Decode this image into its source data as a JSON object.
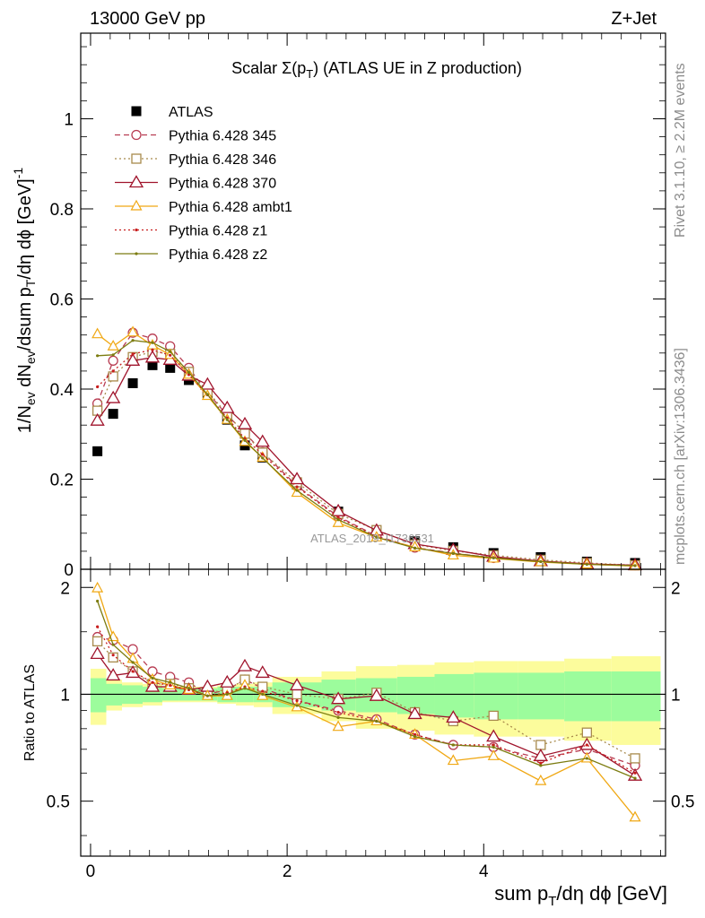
{
  "header": {
    "left": "13000 GeV pp",
    "right": "Z+Jet"
  },
  "side_texts": {
    "rivet": "Rivet 3.1.10, ≥ 2.2M events",
    "mcplots": "mcplots.cern.ch [arXiv:1306.3436]"
  },
  "watermark": "ATLAS_2019_I1736531",
  "colors": {
    "ATLAS": "#000000",
    "p345": "#b83c52",
    "p346": "#a88a4c",
    "p370": "#a0142c",
    "ambt1": "#f0a814",
    "z1": "#c81e1e",
    "z2": "#7c7c10",
    "band_inner": "#9cfc9c",
    "band_outer": "#fcfc9c"
  },
  "chart_data": [
    {
      "panel": "main",
      "type": "line",
      "title": "Scalar Σ(pT) (ATLAS UE in Z production)",
      "title_parts": {
        "pre": "Scalar Σ(p",
        "sub": "T",
        "post": ") (ATLAS UE in Z production)"
      },
      "ylabel": "1/Nev dNev/dsum pT/dη dϕ [GeV]^-1",
      "xlim": [
        -0.1,
        5.85
      ],
      "ylim": [
        0,
        1.19
      ],
      "yticks": [
        0,
        0.2,
        0.4,
        0.6,
        0.8,
        1
      ],
      "yticklabels": [
        "0",
        "0.2",
        "0.4",
        "0.6",
        "0.8",
        "1"
      ],
      "x": [
        0.07,
        0.23,
        0.43,
        0.63,
        0.81,
        1.0,
        1.19,
        1.39,
        1.57,
        1.75,
        2.1,
        2.52,
        2.91,
        3.3,
        3.69,
        4.1,
        4.58,
        5.05,
        5.54
      ],
      "series": [
        {
          "name": "ATLAS",
          "marker": "square-filled",
          "line": "none",
          "values": [
            0.262,
            0.345,
            0.413,
            0.453,
            0.447,
            0.42,
            0.391,
            0.332,
            0.275,
            0.248,
            0.188,
            0.128,
            0.085,
            0.062,
            0.049,
            0.036,
            0.027,
            0.017,
            0.014
          ]
        },
        {
          "name": "Pythia 6.428 345",
          "marker": "circle-open",
          "line": "dashed",
          "values": [
            0.368,
            0.463,
            0.525,
            0.512,
            0.495,
            0.447,
            0.392,
            0.342,
            0.303,
            0.26,
            0.185,
            0.117,
            0.074,
            0.048,
            0.036,
            0.025,
            0.018,
            0.012,
            0.009
          ]
        },
        {
          "name": "Pythia 6.428 346",
          "marker": "square-open",
          "line": "dotted",
          "values": [
            0.352,
            0.428,
            0.471,
            0.483,
            0.478,
            0.438,
            0.395,
            0.344,
            0.301,
            0.259,
            0.193,
            0.123,
            0.087,
            0.055,
            0.041,
            0.031,
            0.021,
            0.014,
            0.009
          ]
        },
        {
          "name": "Pythia 6.428 370",
          "marker": "triangle-open",
          "line": "solid",
          "values": [
            0.33,
            0.38,
            0.463,
            0.47,
            0.465,
            0.43,
            0.41,
            0.358,
            0.322,
            0.283,
            0.2,
            0.129,
            0.086,
            0.056,
            0.043,
            0.028,
            0.018,
            0.012,
            0.009
          ]
        },
        {
          "name": "Pythia 6.428 ambt1",
          "marker": "triangle-open",
          "line": "solid",
          "values": [
            0.522,
            0.495,
            0.526,
            0.497,
            0.476,
            0.432,
            0.385,
            0.332,
            0.283,
            0.248,
            0.17,
            0.103,
            0.071,
            0.049,
            0.031,
            0.024,
            0.016,
            0.011,
            0.007
          ]
        },
        {
          "name": "Pythia 6.428 z1",
          "marker": "dot",
          "line": "dotted",
          "values": [
            0.405,
            0.44,
            0.478,
            0.487,
            0.475,
            0.432,
            0.387,
            0.336,
            0.29,
            0.255,
            0.183,
            0.115,
            0.072,
            0.047,
            0.035,
            0.026,
            0.017,
            0.012,
            0.008
          ]
        },
        {
          "name": "Pythia 6.428 z2",
          "marker": "dot",
          "line": "solid",
          "values": [
            0.474,
            0.476,
            0.508,
            0.503,
            0.483,
            0.437,
            0.388,
            0.332,
            0.286,
            0.247,
            0.175,
            0.11,
            0.071,
            0.047,
            0.035,
            0.025,
            0.017,
            0.011,
            0.008
          ]
        }
      ]
    },
    {
      "panel": "ratio",
      "type": "line",
      "ylabel": "Ratio to ATLAS",
      "xlabel": "sum pT/dη dϕ [GeV]",
      "xlim": [
        -0.1,
        5.85
      ],
      "ylim": [
        0.35,
        2.25
      ],
      "xticks": [
        0,
        2,
        4
      ],
      "xticklabels": [
        "0",
        "2",
        "4"
      ],
      "yticks": [
        0.5,
        1,
        2
      ],
      "yticklabels": [
        "0.5",
        "1",
        "2"
      ],
      "band_edges": [
        0.0,
        0.16,
        0.32,
        0.53,
        0.73,
        0.9,
        1.1,
        1.29,
        1.48,
        1.66,
        1.85,
        2.35,
        2.7,
        3.12,
        3.5,
        3.9,
        4.35,
        4.82,
        5.3,
        5.8
      ],
      "band_inner": [
        0.11,
        0.07,
        0.06,
        0.05,
        0.04,
        0.04,
        0.04,
        0.05,
        0.05,
        0.05,
        0.08,
        0.1,
        0.11,
        0.12,
        0.14,
        0.15,
        0.15,
        0.16,
        0.16
      ],
      "band_outer": [
        0.18,
        0.1,
        0.08,
        0.07,
        0.05,
        0.05,
        0.05,
        0.06,
        0.07,
        0.08,
        0.12,
        0.16,
        0.2,
        0.21,
        0.23,
        0.24,
        0.24,
        0.26,
        0.28
      ],
      "series": [
        {
          "name": "Pythia 6.428 345",
          "values": [
            1.45,
            1.42,
            1.34,
            1.16,
            1.12,
            1.08,
            1.0,
            1.03,
            1.1,
            1.04,
            0.96,
            0.9,
            0.85,
            0.77,
            0.72,
            0.71,
            0.66,
            0.7,
            0.63
          ]
        },
        {
          "name": "Pythia 6.428 346",
          "values": [
            1.41,
            1.27,
            1.16,
            1.07,
            1.07,
            1.04,
            1.01,
            1.03,
            1.1,
            1.05,
            1.0,
            0.97,
            1.01,
            0.89,
            0.84,
            0.87,
            0.72,
            0.78,
            0.66
          ]
        },
        {
          "name": "Pythia 6.428 370",
          "values": [
            1.3,
            1.13,
            1.15,
            1.05,
            1.05,
            1.03,
            1.05,
            1.08,
            1.2,
            1.15,
            1.06,
            0.97,
            0.99,
            0.88,
            0.86,
            0.76,
            0.67,
            0.72,
            0.59
          ]
        },
        {
          "name": "Pythia 6.428 ambt1",
          "values": [
            1.99,
            1.45,
            1.26,
            1.1,
            1.06,
            1.03,
            0.99,
            0.99,
            1.06,
            0.99,
            0.92,
            0.81,
            0.84,
            0.77,
            0.65,
            0.67,
            0.57,
            0.66,
            0.45
          ]
        },
        {
          "name": "Pythia 6.428 z1",
          "values": [
            1.55,
            1.29,
            1.16,
            1.08,
            1.06,
            1.03,
            0.99,
            1.01,
            1.05,
            1.02,
            0.96,
            0.89,
            0.84,
            0.77,
            0.72,
            0.72,
            0.64,
            0.72,
            0.6
          ]
        },
        {
          "name": "Pythia 6.428 z2",
          "values": [
            1.83,
            1.38,
            1.23,
            1.11,
            1.08,
            1.04,
            0.99,
            1.0,
            1.04,
            1.0,
            0.93,
            0.86,
            0.84,
            0.76,
            0.72,
            0.71,
            0.63,
            0.66,
            0.58
          ]
        }
      ]
    }
  ]
}
